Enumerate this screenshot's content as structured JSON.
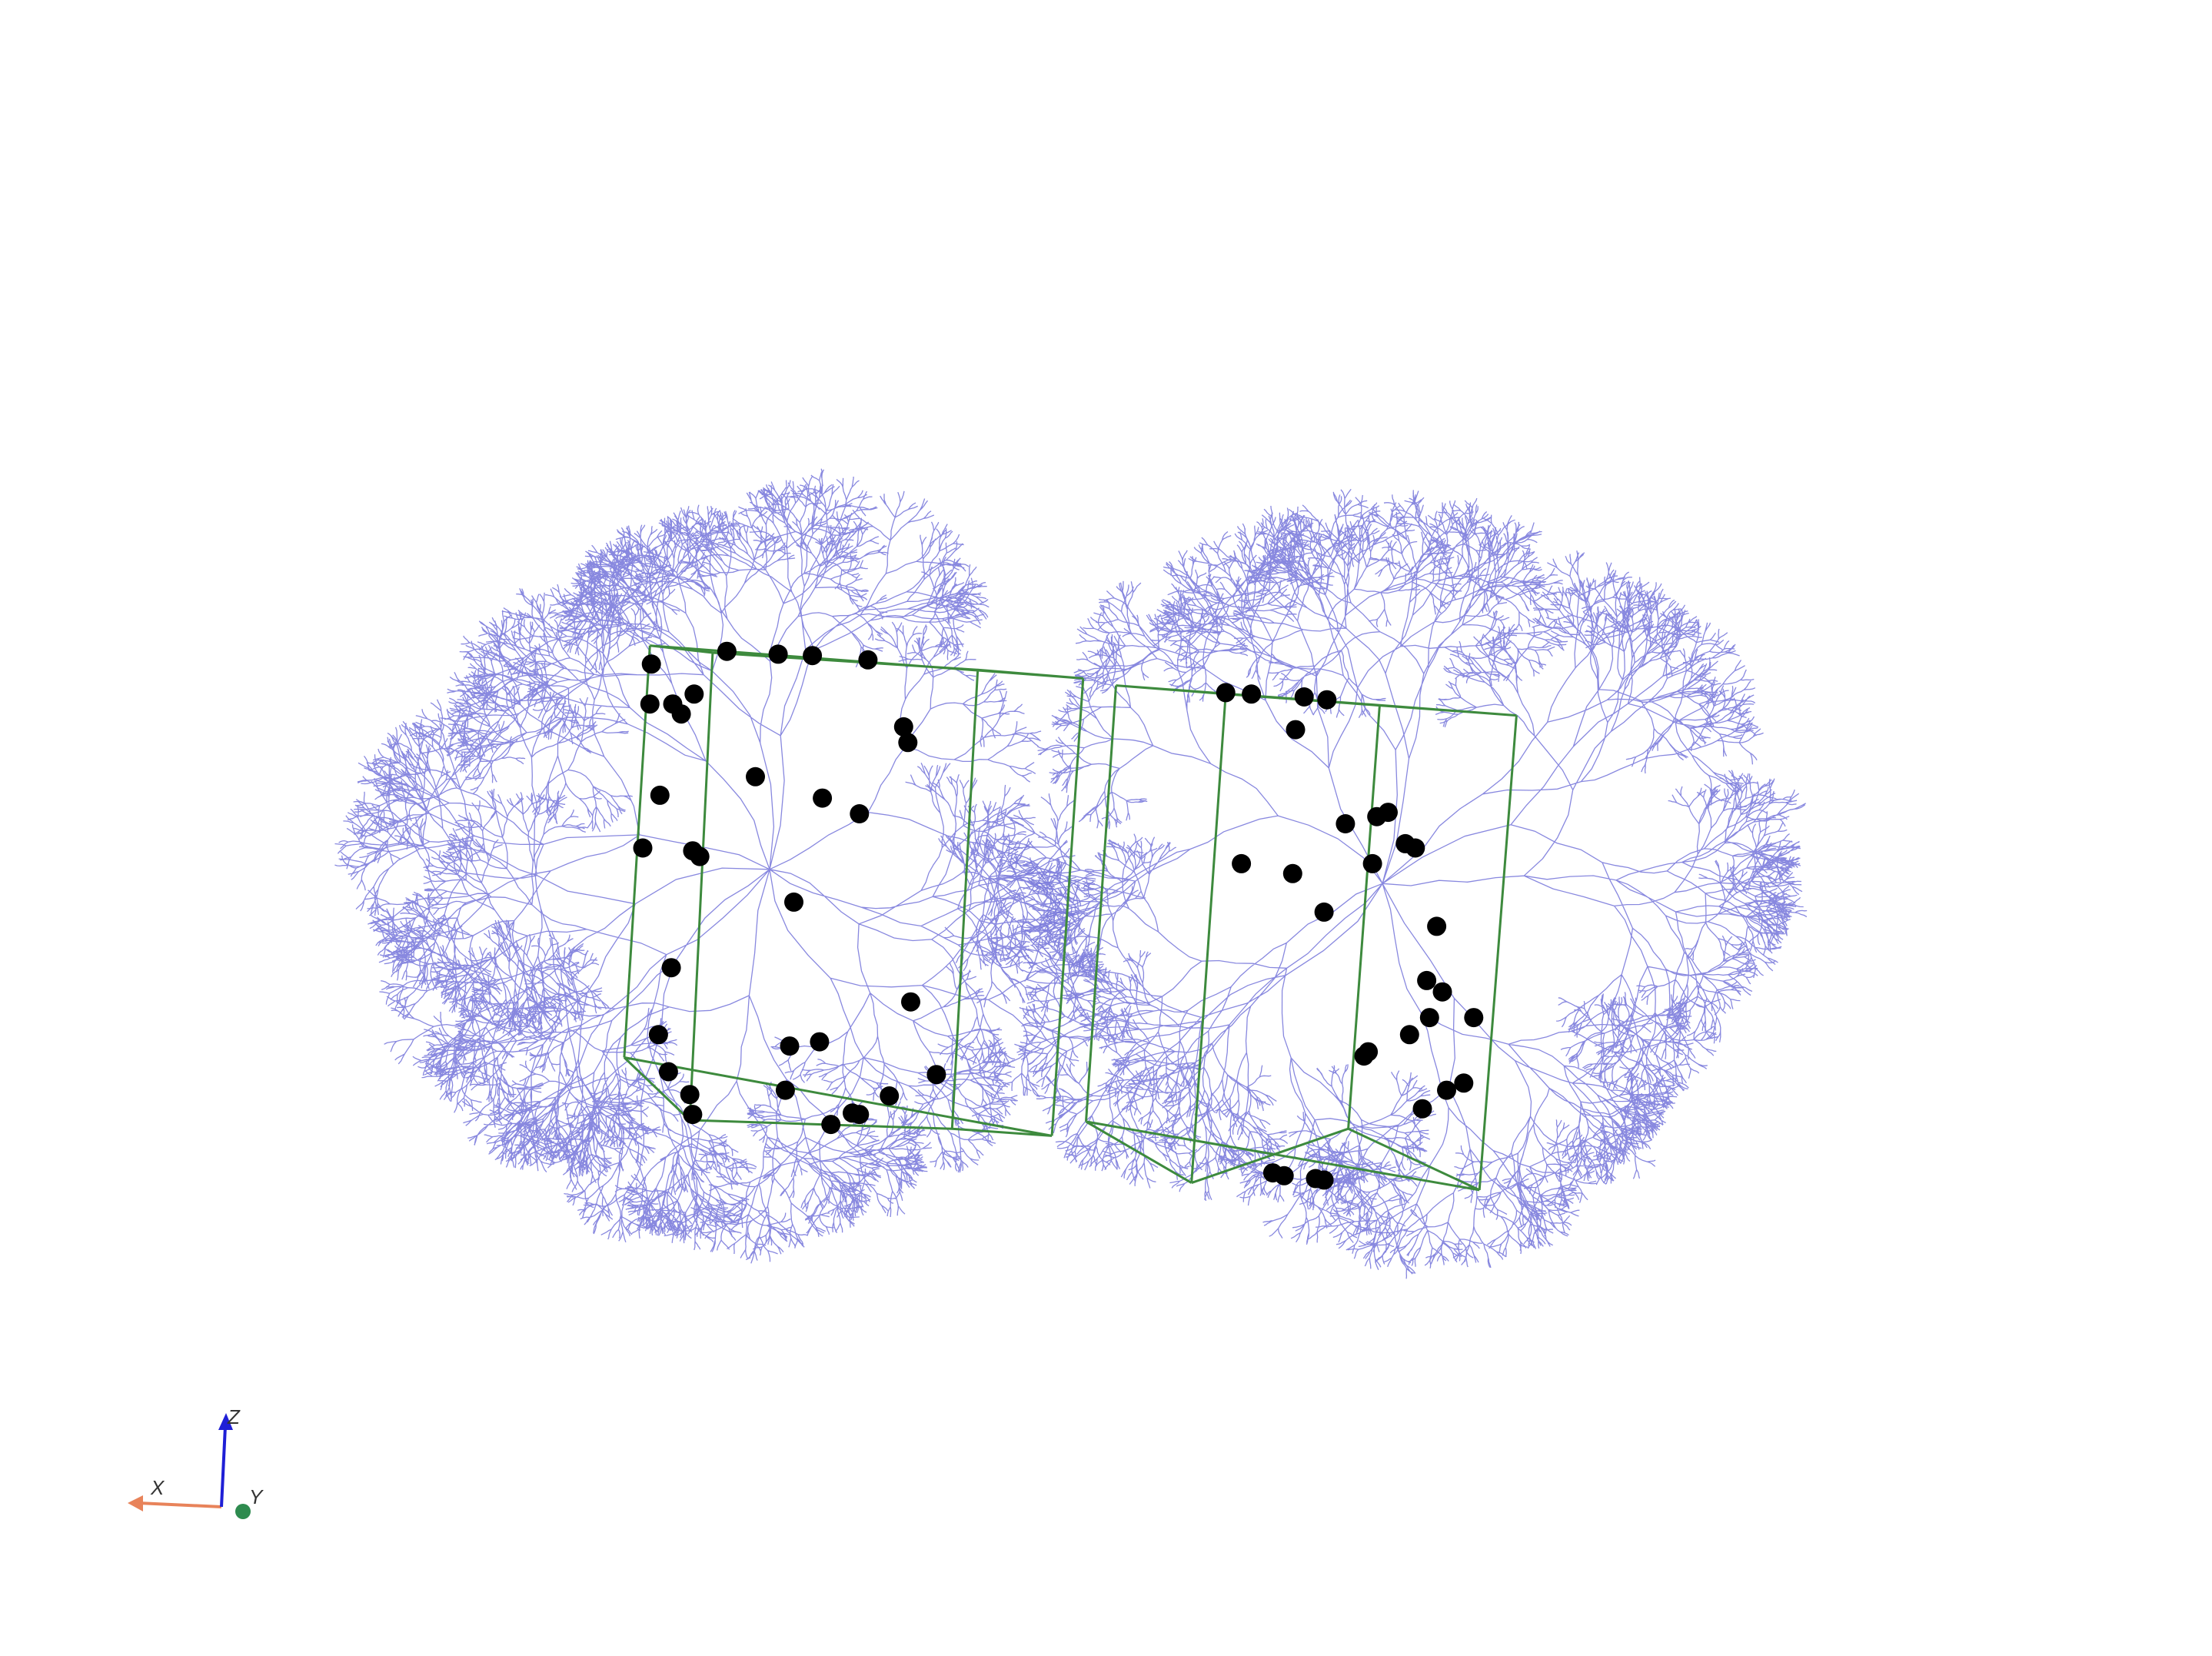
{
  "scene": {
    "background": "#ffffff",
    "neuron_color": "#7b7bdc",
    "box_color": "#3d8a3d",
    "synapse_color": "#000000"
  },
  "axes": {
    "x_label": "X",
    "y_label": "Y",
    "z_label": "Z",
    "x_color": "#e8835a",
    "y_color": "#2e8b4f",
    "z_color": "#1f1fd6"
  }
}
